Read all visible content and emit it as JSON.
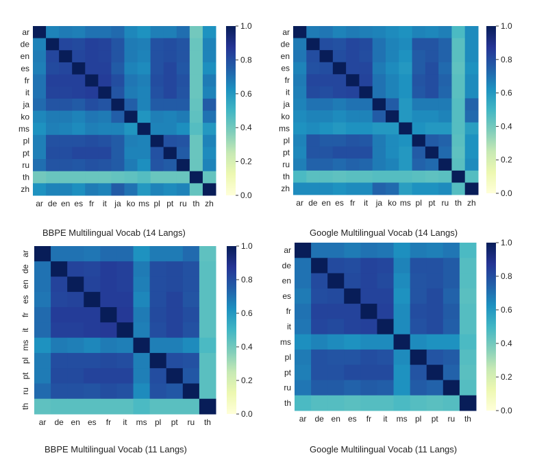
{
  "colorbar": {
    "ticks": [
      "0.0",
      "0.2",
      "0.4",
      "0.6",
      "0.8",
      "1.0"
    ],
    "scale": [
      "#ffffd9",
      "#edf8b1",
      "#c7e9b4",
      "#7fcdbb",
      "#41b6c4",
      "#1d91c0",
      "#225ea8",
      "#253494",
      "#081d58"
    ]
  },
  "chart_data": [
    {
      "type": "heatmap",
      "title": "BBPE Multilingual Vocab (14 Langs)",
      "x_categories": [
        "ar",
        "de",
        "en",
        "es",
        "fr",
        "it",
        "ja",
        "ko",
        "ms",
        "pl",
        "pt",
        "ru",
        "th",
        "zh"
      ],
      "y_categories": [
        "ar",
        "de",
        "en",
        "es",
        "fr",
        "it",
        "ja",
        "ko",
        "ms",
        "pl",
        "pt",
        "ru",
        "th",
        "zh"
      ],
      "zlim": [
        0,
        1
      ],
      "values": [
        [
          1.0,
          0.66,
          0.68,
          0.67,
          0.7,
          0.7,
          0.72,
          0.65,
          0.62,
          0.67,
          0.67,
          0.71,
          0.4,
          0.62
        ],
        [
          0.66,
          1.0,
          0.82,
          0.81,
          0.84,
          0.83,
          0.78,
          0.68,
          0.67,
          0.79,
          0.8,
          0.78,
          0.42,
          0.66
        ],
        [
          0.68,
          0.82,
          1.0,
          0.82,
          0.84,
          0.83,
          0.78,
          0.68,
          0.66,
          0.79,
          0.8,
          0.78,
          0.42,
          0.66
        ],
        [
          0.67,
          0.81,
          0.82,
          1.0,
          0.84,
          0.84,
          0.76,
          0.66,
          0.64,
          0.79,
          0.82,
          0.77,
          0.42,
          0.63
        ],
        [
          0.7,
          0.84,
          0.84,
          0.84,
          1.0,
          0.85,
          0.8,
          0.69,
          0.67,
          0.8,
          0.82,
          0.79,
          0.42,
          0.68
        ],
        [
          0.7,
          0.83,
          0.83,
          0.84,
          0.85,
          1.0,
          0.78,
          0.68,
          0.66,
          0.79,
          0.82,
          0.78,
          0.42,
          0.66
        ],
        [
          0.72,
          0.78,
          0.78,
          0.76,
          0.8,
          0.78,
          1.0,
          0.75,
          0.66,
          0.76,
          0.76,
          0.76,
          0.43,
          0.76
        ],
        [
          0.65,
          0.68,
          0.68,
          0.66,
          0.69,
          0.68,
          0.75,
          1.0,
          0.61,
          0.67,
          0.66,
          0.68,
          0.44,
          0.7
        ],
        [
          0.62,
          0.67,
          0.66,
          0.64,
          0.67,
          0.66,
          0.66,
          0.61,
          1.0,
          0.66,
          0.66,
          0.63,
          0.46,
          0.6
        ],
        [
          0.67,
          0.79,
          0.79,
          0.79,
          0.8,
          0.79,
          0.76,
          0.67,
          0.66,
          1.0,
          0.79,
          0.78,
          0.42,
          0.66
        ],
        [
          0.67,
          0.8,
          0.8,
          0.82,
          0.82,
          0.82,
          0.76,
          0.66,
          0.66,
          0.79,
          1.0,
          0.76,
          0.42,
          0.64
        ],
        [
          0.71,
          0.78,
          0.78,
          0.77,
          0.79,
          0.78,
          0.76,
          0.68,
          0.63,
          0.78,
          0.76,
          1.0,
          0.42,
          0.66
        ],
        [
          0.4,
          0.42,
          0.42,
          0.42,
          0.42,
          0.42,
          0.43,
          0.44,
          0.46,
          0.42,
          0.42,
          0.42,
          1.0,
          0.43
        ],
        [
          0.62,
          0.66,
          0.66,
          0.63,
          0.68,
          0.66,
          0.76,
          0.7,
          0.6,
          0.66,
          0.64,
          0.66,
          0.43,
          1.0
        ]
      ]
    },
    {
      "type": "heatmap",
      "title": "Google Multilingual Vocab (14 Langs)",
      "x_categories": [
        "ar",
        "de",
        "en",
        "es",
        "fr",
        "it",
        "ja",
        "ko",
        "ms",
        "pl",
        "pt",
        "ru",
        "th",
        "zh"
      ],
      "y_categories": [
        "ar",
        "de",
        "en",
        "es",
        "fr",
        "it",
        "ja",
        "ko",
        "ms",
        "pl",
        "pt",
        "ru",
        "th",
        "zh"
      ],
      "zlim": [
        0,
        1
      ],
      "values": [
        [
          1.0,
          0.68,
          0.69,
          0.66,
          0.68,
          0.67,
          0.66,
          0.64,
          0.62,
          0.66,
          0.65,
          0.67,
          0.48,
          0.64
        ],
        [
          0.68,
          1.0,
          0.8,
          0.79,
          0.82,
          0.81,
          0.7,
          0.66,
          0.64,
          0.78,
          0.78,
          0.74,
          0.45,
          0.64
        ],
        [
          0.69,
          0.8,
          1.0,
          0.8,
          0.82,
          0.8,
          0.7,
          0.66,
          0.62,
          0.76,
          0.78,
          0.74,
          0.45,
          0.64
        ],
        [
          0.66,
          0.79,
          0.8,
          1.0,
          0.82,
          0.82,
          0.68,
          0.64,
          0.6,
          0.76,
          0.8,
          0.72,
          0.44,
          0.62
        ],
        [
          0.68,
          0.82,
          0.82,
          0.82,
          1.0,
          0.83,
          0.7,
          0.66,
          0.62,
          0.78,
          0.8,
          0.74,
          0.45,
          0.64
        ],
        [
          0.67,
          0.81,
          0.8,
          0.82,
          0.83,
          1.0,
          0.7,
          0.66,
          0.62,
          0.77,
          0.8,
          0.73,
          0.45,
          0.64
        ],
        [
          0.66,
          0.7,
          0.7,
          0.68,
          0.7,
          0.7,
          1.0,
          0.76,
          0.6,
          0.68,
          0.68,
          0.68,
          0.46,
          0.74
        ],
        [
          0.64,
          0.66,
          0.66,
          0.64,
          0.66,
          0.66,
          0.76,
          1.0,
          0.6,
          0.64,
          0.64,
          0.66,
          0.46,
          0.72
        ],
        [
          0.62,
          0.64,
          0.62,
          0.6,
          0.62,
          0.62,
          0.6,
          0.6,
          1.0,
          0.62,
          0.6,
          0.6,
          0.46,
          0.58
        ],
        [
          0.66,
          0.78,
          0.76,
          0.76,
          0.78,
          0.77,
          0.68,
          0.64,
          0.62,
          1.0,
          0.76,
          0.74,
          0.45,
          0.62
        ],
        [
          0.65,
          0.78,
          0.78,
          0.8,
          0.8,
          0.8,
          0.68,
          0.64,
          0.6,
          0.76,
          1.0,
          0.72,
          0.44,
          0.62
        ],
        [
          0.67,
          0.74,
          0.74,
          0.72,
          0.74,
          0.73,
          0.68,
          0.66,
          0.6,
          0.74,
          0.72,
          1.0,
          0.45,
          0.64
        ],
        [
          0.48,
          0.45,
          0.45,
          0.44,
          0.45,
          0.45,
          0.46,
          0.46,
          0.46,
          0.45,
          0.44,
          0.45,
          1.0,
          0.46
        ],
        [
          0.64,
          0.64,
          0.64,
          0.62,
          0.64,
          0.64,
          0.74,
          0.72,
          0.58,
          0.62,
          0.62,
          0.64,
          0.46,
          1.0
        ]
      ]
    },
    {
      "type": "heatmap",
      "title": "BBPE Multilingual Vocab (11 Langs)",
      "x_categories": [
        "ar",
        "de",
        "en",
        "es",
        "fr",
        "it",
        "ms",
        "pl",
        "pt",
        "ru",
        "th"
      ],
      "y_categories": [
        "ar",
        "de",
        "en",
        "es",
        "fr",
        "it",
        "ms",
        "pl",
        "pt",
        "ru",
        "th"
      ],
      "zlim": [
        0,
        1
      ],
      "values": [
        [
          1.0,
          0.7,
          0.7,
          0.69,
          0.72,
          0.72,
          0.62,
          0.68,
          0.68,
          0.72,
          0.44
        ],
        [
          0.7,
          1.0,
          0.83,
          0.82,
          0.85,
          0.84,
          0.68,
          0.8,
          0.81,
          0.79,
          0.45
        ],
        [
          0.7,
          0.83,
          1.0,
          0.83,
          0.85,
          0.84,
          0.67,
          0.8,
          0.81,
          0.79,
          0.45
        ],
        [
          0.69,
          0.82,
          0.83,
          1.0,
          0.85,
          0.85,
          0.65,
          0.8,
          0.83,
          0.78,
          0.45
        ],
        [
          0.72,
          0.85,
          0.85,
          0.85,
          1.0,
          0.86,
          0.68,
          0.81,
          0.83,
          0.8,
          0.45
        ],
        [
          0.72,
          0.84,
          0.84,
          0.85,
          0.86,
          1.0,
          0.67,
          0.8,
          0.83,
          0.79,
          0.45
        ],
        [
          0.62,
          0.68,
          0.67,
          0.65,
          0.68,
          0.67,
          1.0,
          0.67,
          0.67,
          0.64,
          0.48
        ],
        [
          0.68,
          0.8,
          0.8,
          0.8,
          0.81,
          0.8,
          0.67,
          1.0,
          0.8,
          0.79,
          0.45
        ],
        [
          0.68,
          0.81,
          0.81,
          0.83,
          0.83,
          0.83,
          0.67,
          0.8,
          1.0,
          0.77,
          0.45
        ],
        [
          0.72,
          0.79,
          0.79,
          0.78,
          0.8,
          0.79,
          0.64,
          0.79,
          0.77,
          1.0,
          0.45
        ],
        [
          0.44,
          0.45,
          0.45,
          0.45,
          0.45,
          0.45,
          0.48,
          0.45,
          0.45,
          0.45,
          1.0
        ]
      ]
    },
    {
      "type": "heatmap",
      "title": "Google Multilingual Vocab (11 Langs)",
      "x_categories": [
        "ar",
        "de",
        "en",
        "es",
        "fr",
        "it",
        "ms",
        "pl",
        "pt",
        "ru",
        "th"
      ],
      "y_categories": [
        "ar",
        "de",
        "en",
        "es",
        "fr",
        "it",
        "ms",
        "pl",
        "pt",
        "ru",
        "th"
      ],
      "zlim": [
        0,
        1
      ],
      "values": [
        [
          1.0,
          0.7,
          0.7,
          0.68,
          0.7,
          0.69,
          0.63,
          0.68,
          0.67,
          0.69,
          0.48
        ],
        [
          0.7,
          1.0,
          0.81,
          0.8,
          0.83,
          0.82,
          0.66,
          0.79,
          0.79,
          0.76,
          0.46
        ],
        [
          0.7,
          0.81,
          1.0,
          0.81,
          0.83,
          0.81,
          0.64,
          0.78,
          0.79,
          0.76,
          0.46
        ],
        [
          0.68,
          0.8,
          0.81,
          1.0,
          0.83,
          0.83,
          0.62,
          0.78,
          0.81,
          0.74,
          0.45
        ],
        [
          0.7,
          0.83,
          0.83,
          0.83,
          1.0,
          0.84,
          0.64,
          0.8,
          0.81,
          0.76,
          0.46
        ],
        [
          0.69,
          0.82,
          0.81,
          0.83,
          0.84,
          1.0,
          0.64,
          0.79,
          0.81,
          0.75,
          0.46
        ],
        [
          0.63,
          0.66,
          0.64,
          0.62,
          0.64,
          0.64,
          1.0,
          0.64,
          0.62,
          0.62,
          0.48
        ],
        [
          0.68,
          0.79,
          0.78,
          0.78,
          0.8,
          0.79,
          0.64,
          1.0,
          0.78,
          0.76,
          0.46
        ],
        [
          0.67,
          0.79,
          0.79,
          0.81,
          0.81,
          0.81,
          0.62,
          0.78,
          1.0,
          0.74,
          0.45
        ],
        [
          0.69,
          0.76,
          0.76,
          0.74,
          0.76,
          0.75,
          0.62,
          0.76,
          0.74,
          1.0,
          0.46
        ],
        [
          0.48,
          0.46,
          0.46,
          0.45,
          0.46,
          0.46,
          0.48,
          0.46,
          0.45,
          0.46,
          1.0
        ]
      ]
    }
  ]
}
